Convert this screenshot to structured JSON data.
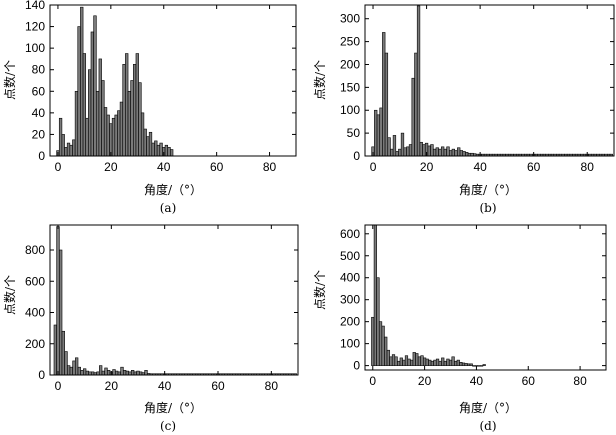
{
  "figure": {
    "caption_labels": [
      "(a)",
      "(b)",
      "(c)",
      "(d)"
    ]
  },
  "chart_data": [
    {
      "type": "bar",
      "id": "a",
      "xlabel": "角度/（°）",
      "ylabel": "点数/个",
      "xlim": [
        -3,
        90
      ],
      "ylim": [
        0,
        140
      ],
      "xticks": [
        0,
        20,
        40,
        60,
        80
      ],
      "yticks": [
        0,
        20,
        40,
        60,
        80,
        100,
        120,
        140
      ],
      "bar_width": 1,
      "grid": false,
      "x": [
        0,
        1,
        2,
        3,
        4,
        5,
        6,
        7,
        8,
        9,
        10,
        11,
        12,
        13,
        14,
        15,
        16,
        17,
        18,
        19,
        20,
        21,
        22,
        23,
        24,
        25,
        26,
        27,
        28,
        29,
        30,
        31,
        32,
        33,
        34,
        35,
        36,
        37,
        38,
        39,
        40,
        41,
        42,
        43
      ],
      "values": [
        5,
        35,
        20,
        8,
        12,
        10,
        15,
        60,
        120,
        138,
        95,
        35,
        80,
        115,
        130,
        60,
        90,
        70,
        45,
        38,
        30,
        35,
        38,
        42,
        50,
        85,
        95,
        60,
        70,
        85,
        95,
        68,
        40,
        25,
        18,
        22,
        12,
        14,
        10,
        12,
        8,
        10,
        8,
        6
      ]
    },
    {
      "type": "bar",
      "id": "b",
      "xlabel": "角度/（°）",
      "ylabel": "点数/个",
      "xlim": [
        -3,
        90
      ],
      "ylim": [
        0,
        330
      ],
      "xticks": [
        0,
        20,
        40,
        60,
        80
      ],
      "yticks": [
        0,
        50,
        100,
        150,
        200,
        250,
        300
      ],
      "bar_width": 1,
      "grid": false,
      "x": [
        0,
        1,
        2,
        3,
        4,
        5,
        6,
        7,
        8,
        9,
        10,
        11,
        12,
        13,
        14,
        15,
        16,
        17,
        18,
        19,
        20,
        21,
        22,
        23,
        24,
        25,
        26,
        27,
        28,
        29,
        30,
        31,
        32,
        33,
        34,
        35,
        36,
        37,
        38,
        39,
        40,
        41,
        42,
        43,
        44,
        45,
        46,
        47,
        48,
        49,
        50,
        51,
        52,
        53,
        54,
        55,
        56,
        57,
        58,
        59,
        60,
        61,
        62,
        63,
        64,
        65,
        66,
        67,
        68,
        69,
        70,
        71,
        72,
        73,
        74,
        75,
        76,
        77,
        78,
        79,
        80,
        81,
        82,
        83,
        84,
        85,
        86,
        87,
        88,
        89
      ],
      "values": [
        20,
        100,
        90,
        105,
        270,
        225,
        40,
        15,
        45,
        10,
        15,
        50,
        18,
        20,
        25,
        170,
        225,
        328,
        30,
        25,
        28,
        22,
        25,
        15,
        18,
        15,
        20,
        15,
        20,
        12,
        15,
        12,
        18,
        12,
        10,
        8,
        6,
        6,
        5,
        4,
        4,
        4,
        4,
        4,
        4,
        4,
        4,
        4,
        4,
        4,
        4,
        4,
        4,
        4,
        4,
        4,
        4,
        4,
        4,
        4,
        4,
        4,
        4,
        4,
        4,
        4,
        4,
        4,
        4,
        4,
        4,
        4,
        4,
        4,
        4,
        4,
        4,
        4,
        4,
        4,
        4,
        4,
        4,
        4,
        4,
        4,
        4,
        4,
        4,
        4
      ]
    },
    {
      "type": "bar",
      "id": "c",
      "xlabel": "角度/（°）",
      "ylabel": "点数/个",
      "xlim": [
        -3,
        90
      ],
      "ylim": [
        0,
        960
      ],
      "xticks": [
        0,
        20,
        40,
        60,
        80
      ],
      "yticks": [
        0,
        200,
        400,
        600,
        800
      ],
      "bar_width": 1,
      "grid": false,
      "x": [
        -1,
        0,
        1,
        2,
        3,
        4,
        5,
        6,
        7,
        8,
        9,
        10,
        11,
        12,
        13,
        14,
        15,
        16,
        17,
        18,
        19,
        20,
        21,
        22,
        23,
        24,
        25,
        26,
        27,
        28,
        29,
        30,
        31,
        32,
        33,
        34,
        35,
        36,
        37,
        38,
        39,
        40,
        41,
        42,
        43,
        44,
        45,
        46,
        47,
        48,
        49,
        50,
        51,
        52,
        53,
        54,
        55,
        56,
        57,
        58,
        59,
        60,
        61,
        62,
        63,
        64,
        65,
        66,
        67,
        68,
        69,
        70,
        71,
        72,
        73,
        74,
        75,
        76,
        77,
        78,
        79,
        80,
        81,
        82,
        83,
        84,
        85,
        86,
        87,
        88,
        89
      ],
      "values": [
        320,
        950,
        800,
        280,
        150,
        60,
        50,
        90,
        110,
        50,
        30,
        40,
        25,
        20,
        20,
        15,
        20,
        60,
        25,
        45,
        30,
        20,
        35,
        25,
        20,
        50,
        30,
        25,
        20,
        30,
        20,
        25,
        20,
        15,
        30,
        10,
        8,
        8,
        8,
        8,
        8,
        8,
        8,
        8,
        8,
        8,
        8,
        8,
        8,
        8,
        8,
        8,
        8,
        8,
        8,
        8,
        8,
        8,
        8,
        8,
        8,
        8,
        8,
        8,
        8,
        8,
        8,
        8,
        8,
        8,
        8,
        8,
        8,
        8,
        8,
        8,
        8,
        8,
        8,
        8,
        8,
        8,
        8,
        8,
        8,
        8,
        8,
        8,
        8,
        8,
        8
      ]
    },
    {
      "type": "bar",
      "id": "d",
      "xlabel": "角度/（°）",
      "ylabel": "点数/个",
      "xlim": [
        -3,
        90
      ],
      "ylim": [
        -20,
        640
      ],
      "xticks": [
        0,
        20,
        40,
        60,
        80
      ],
      "yticks": [
        0,
        100,
        200,
        300,
        400,
        500,
        600
      ],
      "bar_width": 1,
      "grid": false,
      "x": [
        0,
        1,
        2,
        3,
        4,
        5,
        6,
        7,
        8,
        9,
        10,
        11,
        12,
        13,
        14,
        15,
        16,
        17,
        18,
        19,
        20,
        21,
        22,
        23,
        24,
        25,
        26,
        27,
        28,
        29,
        30,
        31,
        32,
        33,
        34,
        35,
        36,
        37,
        38,
        39,
        40,
        41,
        42,
        43
      ],
      "values": [
        220,
        640,
        400,
        200,
        180,
        130,
        70,
        40,
        50,
        40,
        20,
        35,
        25,
        45,
        30,
        25,
        60,
        55,
        40,
        45,
        35,
        30,
        25,
        20,
        25,
        30,
        20,
        35,
        20,
        30,
        25,
        40,
        20,
        25,
        15,
        12,
        10,
        8,
        8,
        0,
        0,
        0,
        0,
        5
      ]
    }
  ]
}
